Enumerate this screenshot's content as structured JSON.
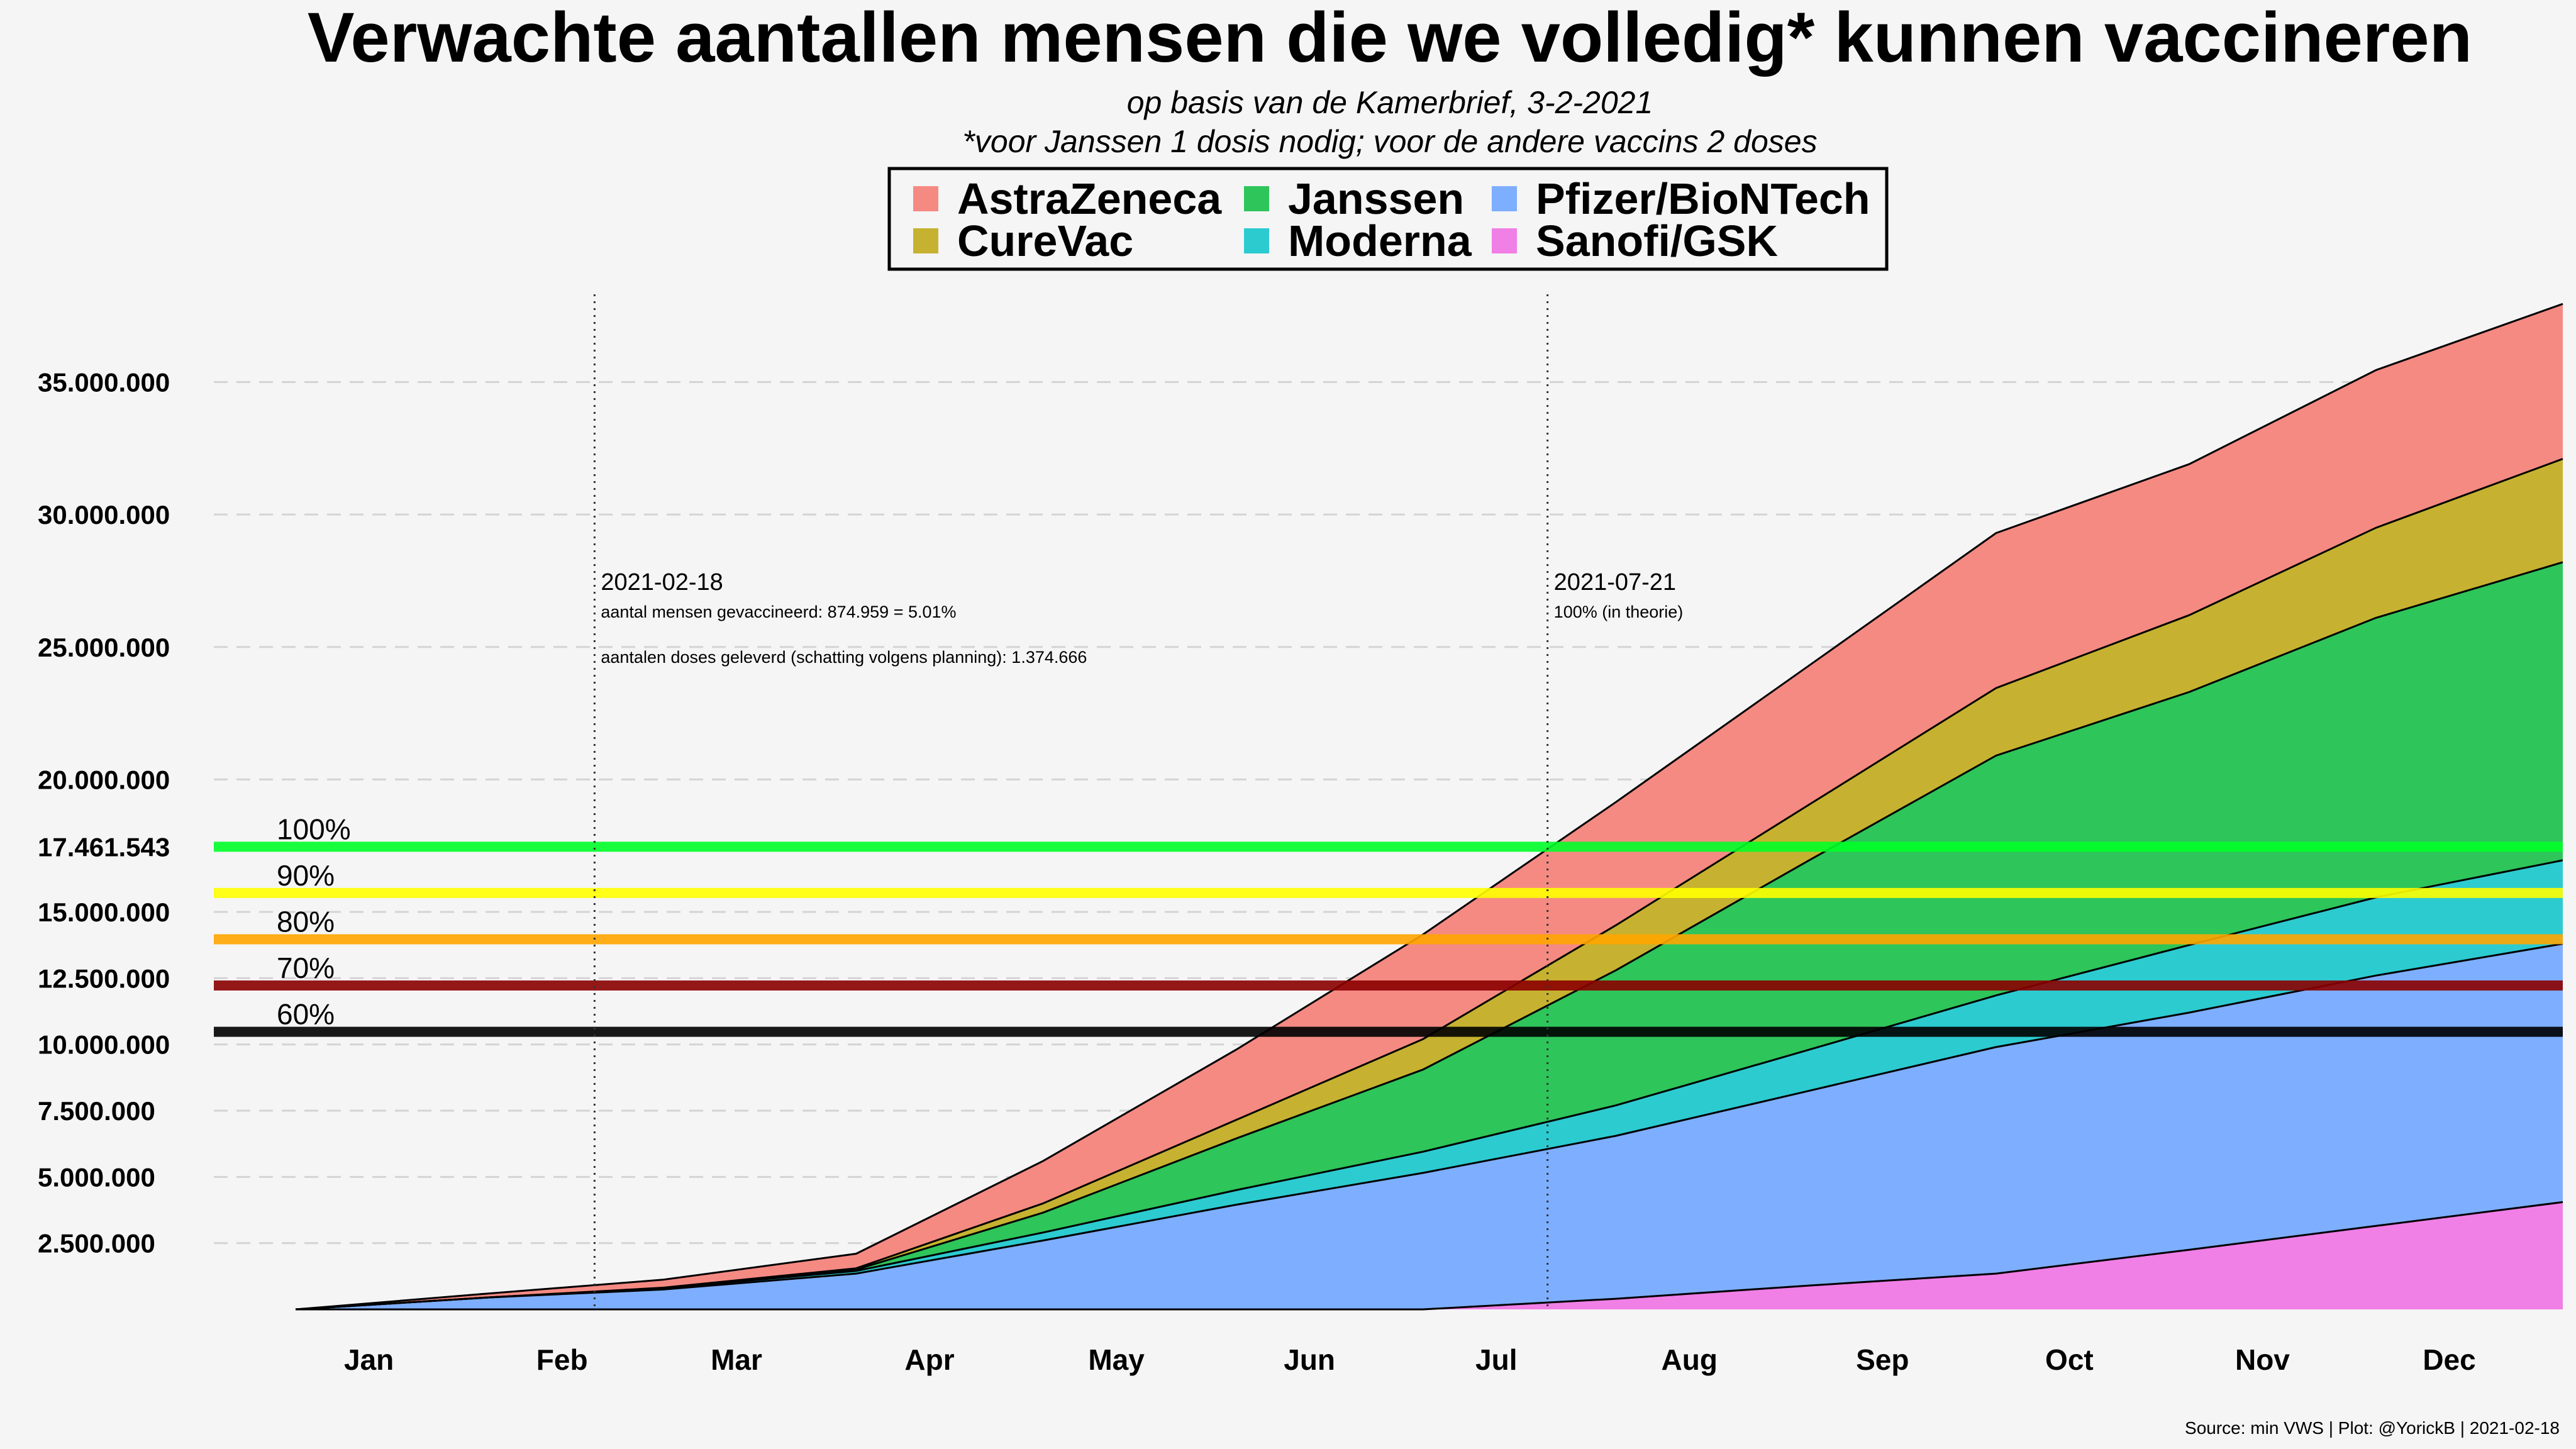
{
  "chart_data": {
    "type": "area",
    "title": "Verwachte aantallen mensen die we volledig* kunnen vaccineren",
    "subtitle_1": "op basis van de Kamerbrief, 3-2-2021",
    "subtitle_2": "*voor Janssen 1 dosis nodig; voor de andere vaccins 2 doses",
    "stacked": true,
    "x": [
      "2021-01-01",
      "2021-02-01",
      "2021-03-01",
      "2021-04-01",
      "2021-05-01",
      "2021-06-01",
      "2021-07-01",
      "2021-08-01",
      "2021-09-01",
      "2021-10-01",
      "2021-11-01",
      "2021-12-01",
      "2021-12-31"
    ],
    "series": [
      {
        "name": "Sanofi/GSK",
        "color": "#f07fe6",
        "values": [
          0,
          0,
          0,
          0,
          0,
          0,
          0,
          400000,
          900000,
          1350000,
          2250000,
          3150000,
          4050000
        ]
      },
      {
        "name": "Pfizer/BioNTech",
        "color": "#7eaeff",
        "values": [
          0,
          450000,
          750000,
          1350000,
          2600000,
          3950000,
          5150000,
          6150000,
          7350000,
          8550000,
          8950000,
          9450000,
          9750000
        ]
      },
      {
        "name": "Moderna",
        "color": "#2ccbd0",
        "values": [
          0,
          0,
          50000,
          100000,
          300000,
          550000,
          800000,
          1150000,
          1550000,
          1950000,
          2550000,
          2950000,
          3150000
        ]
      },
      {
        "name": "Janssen",
        "color": "#2ec55a",
        "values": [
          0,
          0,
          0,
          50000,
          750000,
          1950000,
          3100000,
          5100000,
          7150000,
          9050000,
          9550000,
          10550000,
          11250000
        ]
      },
      {
        "name": "CureVac",
        "color": "#c6b230",
        "values": [
          0,
          0,
          20000,
          50000,
          350000,
          700000,
          1150000,
          1700000,
          2100000,
          2550000,
          2900000,
          3400000,
          3900000
        ]
      },
      {
        "name": "AstraZeneca",
        "color": "#f58a83",
        "values": [
          0,
          150000,
          300000,
          550000,
          1600000,
          2650000,
          3950000,
          4650000,
          5250000,
          5850000,
          5700000,
          5950000,
          5850000
        ]
      }
    ],
    "legend_rows": [
      [
        "AstraZeneca",
        "Janssen",
        "Pfizer/BioNTech"
      ],
      [
        "CureVac",
        "Moderna",
        "Sanofi/GSK"
      ]
    ],
    "ylim": [
      0,
      38500000
    ],
    "y_ticks": [
      {
        "value": 2500000,
        "label": "2.500.000"
      },
      {
        "value": 5000000,
        "label": "5.000.000"
      },
      {
        "value": 7500000,
        "label": "7.500.000"
      },
      {
        "value": 10000000,
        "label": "10.000.000"
      },
      {
        "value": 12500000,
        "label": "12.500.000"
      },
      {
        "value": 15000000,
        "label": "15.000.000"
      },
      {
        "value": 17461543,
        "label": "17.461.543"
      },
      {
        "value": 20000000,
        "label": "20.000.000"
      },
      {
        "value": 25000000,
        "label": "25.000.000"
      },
      {
        "value": 30000000,
        "label": "30.000.000"
      },
      {
        "value": 35000000,
        "label": "35.000.000"
      }
    ],
    "gridlines": [
      2500000,
      5000000,
      7500000,
      10000000,
      12500000,
      15000000,
      20000000,
      25000000,
      30000000,
      35000000
    ],
    "x_ticks": [
      {
        "date": "2021-01-15",
        "label": "Jan"
      },
      {
        "date": "2021-02-15",
        "label": "Feb"
      },
      {
        "date": "2021-03-15",
        "label": "Mar"
      },
      {
        "date": "2021-04-15",
        "label": "Apr"
      },
      {
        "date": "2021-05-15",
        "label": "May"
      },
      {
        "date": "2021-06-15",
        "label": "Jun"
      },
      {
        "date": "2021-07-15",
        "label": "Jul"
      },
      {
        "date": "2021-08-15",
        "label": "Aug"
      },
      {
        "date": "2021-09-15",
        "label": "Sep"
      },
      {
        "date": "2021-10-15",
        "label": "Oct"
      },
      {
        "date": "2021-11-15",
        "label": "Nov"
      },
      {
        "date": "2021-12-15",
        "label": "Dec"
      }
    ],
    "thresholds": [
      {
        "label": "100%",
        "value": 17461543,
        "color": "#00ff28"
      },
      {
        "label": "90%",
        "value": 15715389,
        "color": "#ffff00"
      },
      {
        "label": "80%",
        "value": 13969234,
        "color": "#ffa500"
      },
      {
        "label": "70%",
        "value": 12223080,
        "color": "#8b0000"
      },
      {
        "label": "60%",
        "value": 10476926,
        "color": "#000000"
      }
    ],
    "annotations": [
      {
        "date": "2021-02-18",
        "heading": "2021-02-18",
        "line1": "aantal mensen gevaccineerd: 874.959 = 5.01%",
        "line2": "aantalen doses geleverd (schatting volgens planning): 1.374.666"
      },
      {
        "date": "2021-07-21",
        "heading": "2021-07-21",
        "line1": "100%  (in theorie)",
        "line2": ""
      }
    ],
    "source": "Source: min VWS | Plot: @YorickB |  2021-02-18"
  }
}
